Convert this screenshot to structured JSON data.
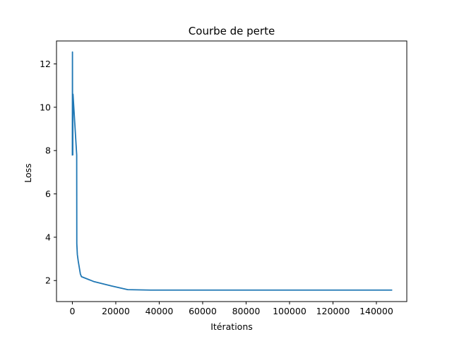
{
  "chart_data": {
    "type": "line",
    "title": "Courbe de perte",
    "xlabel": "Itérations",
    "ylabel": "Loss",
    "xlim": [
      -7300,
      154000
    ],
    "ylim": [
      1.03,
      13.06
    ],
    "xticks": [
      0,
      20000,
      40000,
      60000,
      80000,
      100000,
      120000,
      140000
    ],
    "xtick_labels": [
      "0",
      "20000",
      "40000",
      "60000",
      "80000",
      "100000",
      "120000",
      "140000"
    ],
    "yticks": [
      2,
      4,
      6,
      8,
      10,
      12
    ],
    "ytick_labels": [
      "2",
      "4",
      "6",
      "8",
      "10",
      "12"
    ],
    "grid": false,
    "series": [
      {
        "color": "#1f77b4",
        "x": [
          0,
          50,
          100,
          150,
          200,
          250,
          300,
          2000,
          2050,
          2300,
          2700,
          3200,
          3700,
          4200,
          10000,
          18000,
          25500,
          36000,
          60000,
          100000,
          147000
        ],
        "y": [
          7.8,
          12.55,
          8.0,
          10.6,
          7.8,
          10.5,
          10.6,
          7.8,
          3.7,
          3.2,
          2.9,
          2.6,
          2.3,
          2.18,
          1.95,
          1.75,
          1.58,
          1.56,
          1.56,
          1.56,
          1.56
        ]
      }
    ]
  }
}
